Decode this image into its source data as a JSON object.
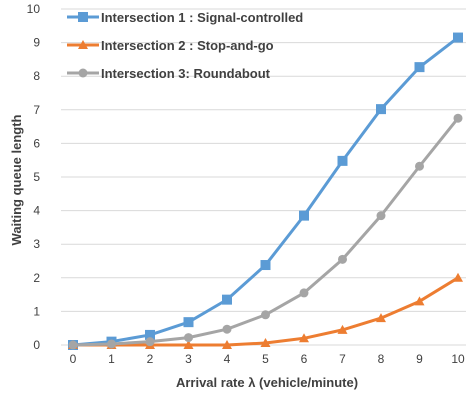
{
  "chart_data": {
    "type": "line",
    "xlabel": "Arrival rate λ (vehicle/minute)",
    "ylabel": "Waiting queue length",
    "x": [
      0,
      1,
      2,
      3,
      4,
      5,
      6,
      7,
      8,
      9,
      10
    ],
    "xlim": [
      0,
      10
    ],
    "ylim": [
      0,
      10
    ],
    "yticks": [
      0,
      1,
      2,
      3,
      4,
      5,
      6,
      7,
      8,
      9,
      10
    ],
    "grid": "horizontal",
    "legend_position": "top-left",
    "series": [
      {
        "name": "Intersection 1 : Signal-controlled",
        "color": "#5b9bd5",
        "marker": "square",
        "values": [
          0,
          0.1,
          0.3,
          0.68,
          1.35,
          2.38,
          3.85,
          5.48,
          7.02,
          8.27,
          9.15
        ]
      },
      {
        "name": "Intersection 2 : Stop-and-go",
        "color": "#ed7d31",
        "marker": "triangle",
        "values": [
          0,
          0,
          0,
          0,
          0,
          0.06,
          0.2,
          0.45,
          0.8,
          1.3,
          2.0
        ]
      },
      {
        "name": "Intersection 3: Roundabout",
        "color": "#a5a5a5",
        "marker": "circle",
        "values": [
          0,
          0.03,
          0.1,
          0.22,
          0.47,
          0.9,
          1.55,
          2.55,
          3.85,
          5.32,
          6.75
        ]
      }
    ]
  }
}
